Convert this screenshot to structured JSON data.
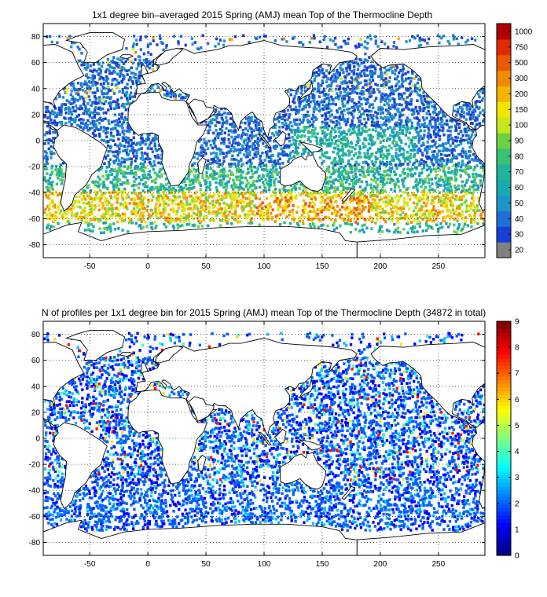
{
  "panels": [
    {
      "title": "1x1 degree bin–averaged 2015 Spring (AMJ) mean Top of the Thermocline Depth",
      "colorbar_labels": [
        "20",
        "30",
        "40",
        "50",
        "60",
        "70",
        "80",
        "90",
        "100",
        "150",
        "200",
        "300",
        "500",
        "750",
        "1000"
      ],
      "colors": [
        "#808080",
        "#1a3fd6",
        "#1f6fd9",
        "#1c95c9",
        "#17aab0",
        "#1fb59a",
        "#38c276",
        "#6fd044",
        "#c8e61c",
        "#f2e600",
        "#f4b400",
        "#f08a00",
        "#ea5a00",
        "#e02a00",
        "#b00000"
      ]
    },
    {
      "title": "N of profiles per 1x1 degree bin for 2015 Spring (AMJ) mean Top of the Thermocline Depth  (34872 in total)",
      "colorbar_labels": [
        "0",
        "1",
        "2",
        "3",
        "4",
        "5",
        "6",
        "7",
        "8",
        "9"
      ],
      "colors": [
        "#00008f",
        "#0000ff",
        "#0060ff",
        "#00c0ff",
        "#40ffbf",
        "#a0ff60",
        "#ffe000",
        "#ff8000",
        "#ff1000",
        "#800000"
      ]
    }
  ],
  "chart_data": [
    {
      "type": "heatmap",
      "title": "1x1 degree bin–averaged 2015 Spring (AMJ) mean Top of the Thermocline Depth",
      "xlabel": "",
      "ylabel": "",
      "xlim": [
        -90,
        290
      ],
      "ylim": [
        -90,
        90
      ],
      "xticks": [
        -50,
        0,
        50,
        100,
        150,
        200,
        250
      ],
      "yticks": [
        80,
        60,
        40,
        20,
        0,
        -20,
        -40,
        -60,
        -80
      ],
      "grid": true,
      "colorbar": {
        "labels": [
          "20",
          "30",
          "40",
          "50",
          "60",
          "70",
          "80",
          "90",
          "100",
          "150",
          "200",
          "300",
          "500",
          "750",
          "1000"
        ]
      },
      "zones": [
        {
          "lat": [
            -65,
            -40
          ],
          "level": "100-500"
        },
        {
          "lat": [
            -40,
            -10
          ],
          "level": "40-80"
        },
        {
          "lat": [
            -10,
            40
          ],
          "level": "20-50"
        }
      ]
    },
    {
      "type": "heatmap",
      "title": "N of profiles per 1x1 degree bin for 2015 Spring (AMJ) mean Top of the Thermocline Depth  (34872 in total)",
      "xlabel": "",
      "ylabel": "",
      "xlim": [
        -90,
        290
      ],
      "ylim": [
        -90,
        90
      ],
      "xticks": [
        -50,
        0,
        50,
        100,
        150,
        200,
        250
      ],
      "yticks": [
        80,
        60,
        40,
        20,
        0,
        -20,
        -40,
        -60,
        -80
      ],
      "grid": true,
      "total_profiles": 34872,
      "colorbar": {
        "range": [
          0,
          9
        ],
        "labels": [
          "0",
          "1",
          "2",
          "3",
          "4",
          "5",
          "6",
          "7",
          "8",
          "9"
        ]
      }
    }
  ]
}
